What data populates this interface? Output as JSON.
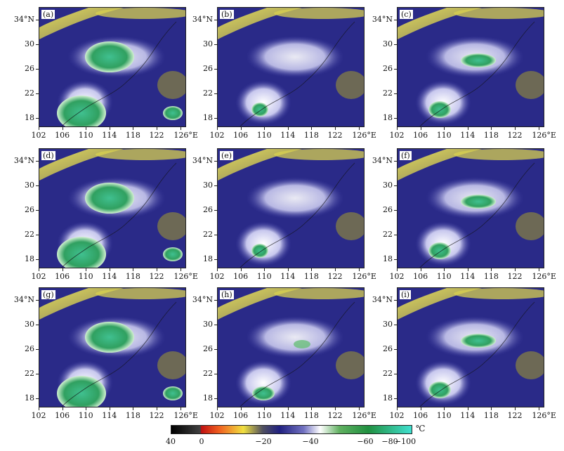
{
  "panels": [
    {
      "label": "(a)",
      "cloud": "big"
    },
    {
      "label": "(b)",
      "cloud": "small"
    },
    {
      "label": "(c)",
      "cloud": "mid"
    },
    {
      "label": "(d)",
      "cloud": "big"
    },
    {
      "label": "(e)",
      "cloud": "small"
    },
    {
      "label": "(f)",
      "cloud": "mid"
    },
    {
      "label": "(g)",
      "cloud": "big"
    },
    {
      "label": "(h)",
      "cloud": "smallwhite"
    },
    {
      "label": "(i)",
      "cloud": "mid"
    }
  ],
  "axes": {
    "x_ticks": [
      "102",
      "106",
      "110",
      "114",
      "118",
      "122",
      "126°E"
    ],
    "y_ticks": [
      "34°N",
      "30",
      "26",
      "22",
      "18"
    ]
  },
  "colorbar": {
    "tick_labels": [
      "40",
      "0",
      "−20",
      "−40",
      "−60",
      "−80",
      "−100"
    ],
    "unit": "℃",
    "colors": [
      "#000000",
      "#e02020",
      "#f0d020",
      "#202080",
      "#ffffff",
      "#30a030",
      "#30d0c0"
    ]
  }
}
